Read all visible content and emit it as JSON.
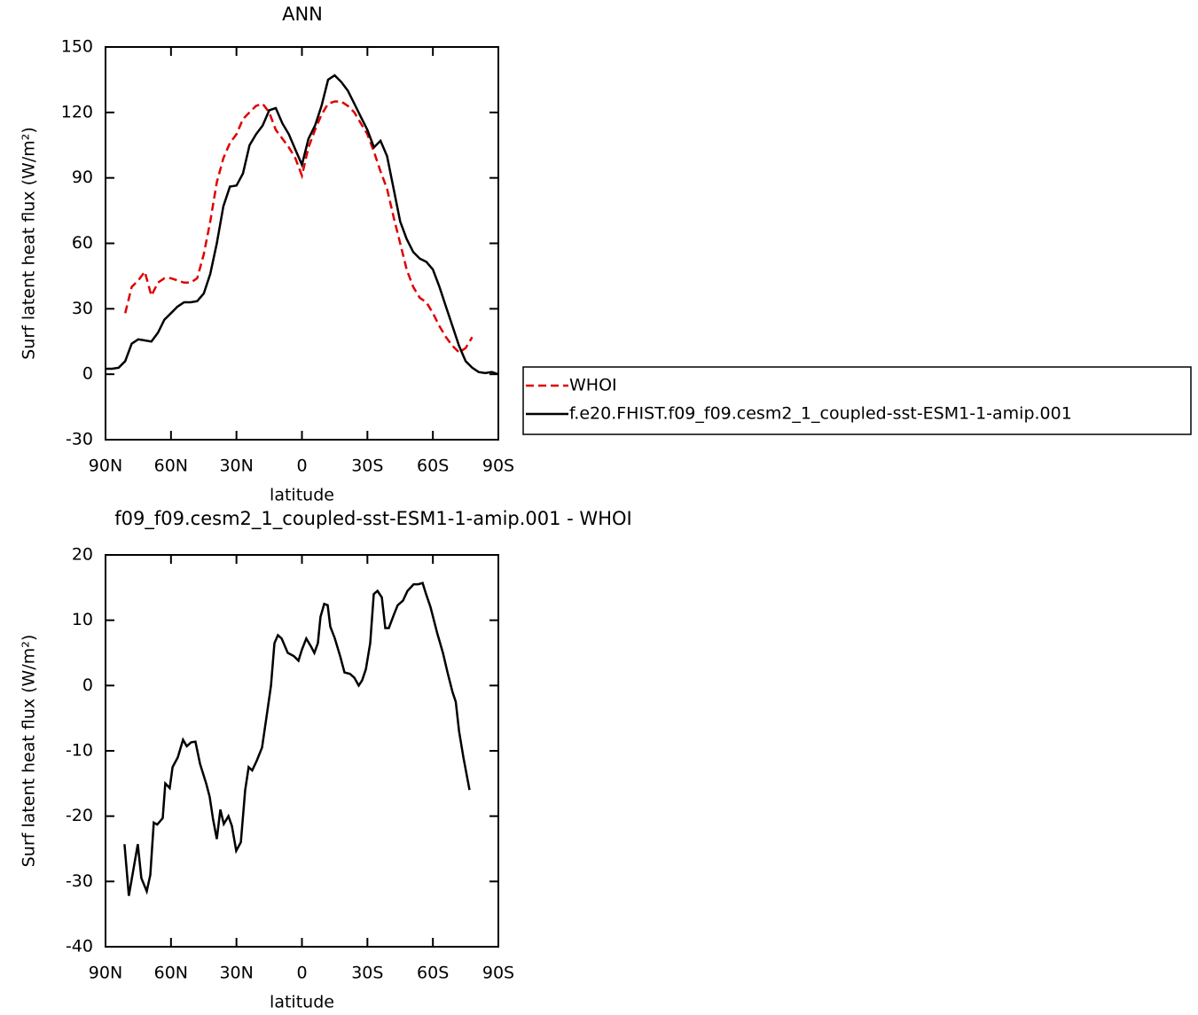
{
  "chart_data": [
    {
      "type": "line",
      "title": "ANN",
      "xlabel": "latitude",
      "ylabel": "Surf latent heat flux (W/m²)",
      "xlim": [
        90,
        -90
      ],
      "ylim": [
        -30,
        150
      ],
      "xticks": [
        {
          "value": 90,
          "label": "90N"
        },
        {
          "value": 60,
          "label": "60N"
        },
        {
          "value": 30,
          "label": "30N"
        },
        0,
        {
          "value": -30,
          "label": "30S"
        },
        {
          "value": -60,
          "label": "60S"
        },
        {
          "value": -90,
          "label": "90S"
        }
      ],
      "yticks": [
        -30,
        0,
        30,
        60,
        90,
        120,
        150
      ],
      "x": [
        90,
        87,
        84,
        81,
        78,
        75,
        72,
        69,
        66,
        63,
        60,
        57,
        54,
        51,
        48,
        45,
        42,
        39,
        36,
        33,
        30,
        27,
        24,
        21,
        18,
        15,
        12,
        9,
        6,
        3,
        0,
        -3,
        -6,
        -9,
        -12,
        -15,
        -18,
        -21,
        -24,
        -27,
        -30,
        -33,
        -36,
        -39,
        -42,
        -45,
        -48,
        -51,
        -54,
        -57,
        -60,
        -63,
        -66,
        -69,
        -72,
        -75,
        -78,
        -81,
        -84,
        -87,
        -90
      ],
      "series": [
        {
          "name": "WHOI",
          "color": "#e00000",
          "dashed": true,
          "values": [
            null,
            null,
            null,
            28,
            40,
            43,
            47,
            36,
            42,
            44,
            44,
            43,
            42,
            42,
            44,
            55,
            70,
            88,
            99,
            106,
            110,
            117,
            120,
            123,
            124,
            120,
            112,
            108,
            104,
            99,
            91,
            104,
            112,
            119,
            124,
            125,
            125,
            123,
            120,
            115,
            110,
            102,
            93,
            85,
            72,
            60,
            48,
            40,
            35,
            33,
            28,
            22,
            17,
            13,
            10,
            12,
            17,
            null,
            null,
            null,
            null
          ]
        },
        {
          "name": "f.e20.FHIST.f09_f09.cesm2_1_coupled-sst-ESM1-1-amip.001",
          "color": "#000000",
          "dashed": false,
          "values": [
            2.5,
            2.5,
            3,
            6,
            14,
            16,
            15.5,
            15,
            19,
            25,
            28,
            31,
            33,
            33,
            33.5,
            37,
            46,
            60,
            77,
            86,
            86.5,
            92,
            105,
            110,
            114,
            121,
            122,
            115,
            110,
            103,
            96,
            108,
            114,
            123,
            135,
            137,
            134,
            130,
            124,
            118,
            112,
            104,
            107,
            100,
            85,
            70,
            62,
            56,
            53,
            51.5,
            48,
            40,
            31,
            22,
            13,
            6,
            3,
            1,
            0.5,
            1,
            0
          ]
        }
      ]
    },
    {
      "type": "line",
      "title": "f09_f09.cesm2_1_coupled-sst-ESM1-1-amip.001 - WHOI",
      "xlabel": "latitude",
      "ylabel": "Surf latent heat flux (W/m²)",
      "xlim": [
        90,
        -90
      ],
      "ylim": [
        -40,
        20
      ],
      "xticks": [
        {
          "value": 90,
          "label": "90N"
        },
        {
          "value": 60,
          "label": "60N"
        },
        {
          "value": 30,
          "label": "30N"
        },
        0,
        {
          "value": -30,
          "label": "30S"
        },
        {
          "value": -60,
          "label": "60S"
        },
        {
          "value": -90,
          "label": "90S"
        }
      ],
      "yticks": [
        -40,
        -30,
        -20,
        -10,
        0,
        10,
        20
      ],
      "x": [
        81.3,
        79.3,
        75.2,
        73.6,
        71.1,
        69.5,
        67.9,
        66.3,
        63.8,
        62.6,
        60.6,
        59.3,
        56.9,
        54.5,
        52.8,
        50.8,
        48.8,
        46.7,
        43.9,
        42.3,
        40.7,
        39,
        37.4,
        35.8,
        33.7,
        32.1,
        30.1,
        28,
        26,
        24.4,
        22.8,
        20.7,
        18.3,
        15.9,
        14.2,
        12.6,
        11,
        9.3,
        6.5,
        3.7,
        1.6,
        0,
        -2,
        -4.1,
        -5.7,
        -7.3,
        -8.5,
        -10.2,
        -11.8,
        -13,
        -15,
        -17.5,
        -19.5,
        -22,
        -24,
        -26,
        -27.6,
        -29.3,
        -31.3,
        -32.9,
        -34.6,
        -36.6,
        -38.2,
        -39.8,
        -42.3,
        -43.9,
        -46.3,
        -48.4,
        -51.2,
        -53.3,
        -55.3,
        -56.9,
        -58.9,
        -62,
        -64.6,
        -66.7,
        -69,
        -70.5,
        -72,
        -74,
        -76.8
      ],
      "series": [
        {
          "color": "#000000",
          "dashed": false,
          "values": [
            -24.3,
            -32.2,
            -24.3,
            -29.5,
            -31.5,
            -29,
            -21,
            -21.3,
            -20.3,
            -15,
            -15.7,
            -12.5,
            -11,
            -8.3,
            -9.3,
            -8.7,
            -8.6,
            -12,
            -15,
            -17,
            -20.5,
            -23.5,
            -19,
            -21.2,
            -20,
            -21.5,
            -25.3,
            -24,
            -16,
            -12.5,
            -13,
            -11.5,
            -9.5,
            -4,
            0,
            6.5,
            7.7,
            7.2,
            5,
            4.5,
            3.8,
            5.5,
            7.2,
            6,
            5,
            6.5,
            10.5,
            12.5,
            12.3,
            9,
            7.3,
            4.5,
            2,
            1.8,
            1.2,
            0,
            0.8,
            2.5,
            6.5,
            14,
            14.5,
            13.5,
            8.8,
            8.8,
            11,
            12.3,
            13,
            14.5,
            15.5,
            15.5,
            15.7,
            14,
            12,
            8,
            5,
            2,
            -1,
            -2.5,
            -7,
            -11,
            -16
          ]
        }
      ]
    }
  ]
}
